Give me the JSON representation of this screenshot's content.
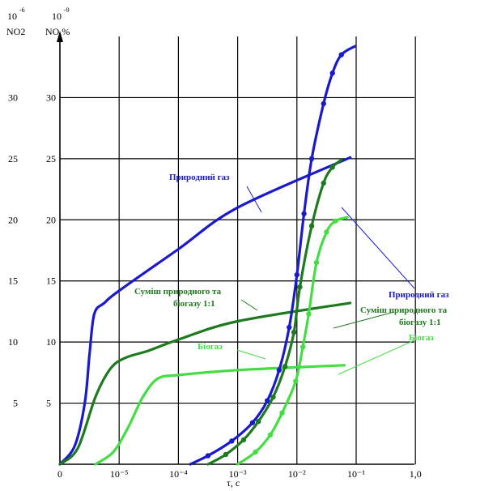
{
  "chart_data": {
    "type": "line",
    "header": {
      "left_power": "10",
      "left_exp": "-6",
      "left_unit": "NO2",
      "right_power": "10",
      "right_exp": "-9",
      "right_unit": "NO,%"
    },
    "xlabel": "τ, с",
    "x_ticks": [
      "0",
      "10⁻⁵",
      "10⁻⁴",
      "10⁻³",
      "10⁻²",
      "10⁻¹",
      "1,0"
    ],
    "y_ticks_left": [
      "5",
      "10",
      "15",
      "20",
      "25",
      "30"
    ],
    "y_ticks_right": [
      "5",
      "10",
      "15",
      "20",
      "25",
      "30"
    ],
    "ylim": [
      0,
      35
    ],
    "grid": true,
    "annotations": {
      "ng_top": "Природний газ",
      "mix_top_1": "Суміш природного та",
      "mix_top_2": "біогазу 1:1",
      "bio_top": "Біогаз",
      "ng_bottom": "Природний газ",
      "mix_bottom_1": "Суміш природного та",
      "mix_bottom_2": "біогазу 1:1",
      "bio_bottom": "Біогаз"
    },
    "series": [
      {
        "color": "#1a1acc",
        "markers": false,
        "points": [
          [
            0,
            0
          ],
          [
            0.25,
            1.5
          ],
          [
            0.42,
            5
          ],
          [
            0.5,
            9
          ],
          [
            0.58,
            12.3
          ],
          [
            0.75,
            13.2
          ],
          [
            1,
            14.2
          ],
          [
            2,
            17.6
          ],
          [
            3,
            21
          ],
          [
            4.9,
            25.1
          ]
        ]
      },
      {
        "color": "#1e7a1e",
        "markers": false,
        "points": [
          [
            0,
            0
          ],
          [
            0.3,
            1.3
          ],
          [
            0.6,
            5.5
          ],
          [
            0.85,
            7.8
          ],
          [
            1.1,
            8.7
          ],
          [
            1.5,
            9.3
          ],
          [
            2,
            10.2
          ],
          [
            3,
            11.7
          ],
          [
            4.9,
            13.2
          ]
        ]
      },
      {
        "color": "#44dd44",
        "markers": false,
        "points": [
          [
            0.6,
            0
          ],
          [
            0.9,
            1
          ],
          [
            1.15,
            3
          ],
          [
            1.4,
            5.5
          ],
          [
            1.65,
            7
          ],
          [
            2,
            7.3
          ],
          [
            3,
            7.7
          ],
          [
            4.8,
            8.1
          ]
        ]
      },
      {
        "color": "#1a1acc",
        "markers": true,
        "points": [
          [
            2.2,
            0
          ],
          [
            2.5,
            0.7
          ],
          [
            2.9,
            1.9
          ],
          [
            3.25,
            3.4
          ],
          [
            3.5,
            5.2
          ],
          [
            3.7,
            7.7
          ],
          [
            3.87,
            11.2
          ],
          [
            4.0,
            15.5
          ],
          [
            4.12,
            20.5
          ],
          [
            4.25,
            25
          ],
          [
            4.45,
            29.5
          ],
          [
            4.6,
            32
          ],
          [
            4.75,
            33.5
          ],
          [
            4.98,
            34.2
          ]
        ]
      },
      {
        "color": "#1e7a1e",
        "markers": true,
        "points": [
          [
            2.5,
            0
          ],
          [
            2.8,
            0.8
          ],
          [
            3.1,
            2
          ],
          [
            3.35,
            3.5
          ],
          [
            3.6,
            5.5
          ],
          [
            3.8,
            8
          ],
          [
            3.95,
            10.8
          ],
          [
            4.05,
            14.5
          ],
          [
            4.25,
            19.5
          ],
          [
            4.45,
            23
          ],
          [
            4.6,
            24.3
          ],
          [
            4.75,
            24.9
          ]
        ]
      },
      {
        "color": "#44dd44",
        "markers": true,
        "points": [
          [
            3.0,
            0
          ],
          [
            3.3,
            1
          ],
          [
            3.55,
            2.4
          ],
          [
            3.75,
            4.2
          ],
          [
            3.98,
            6.8
          ],
          [
            4.1,
            9.6
          ],
          [
            4.2,
            12.3
          ],
          [
            4.33,
            16.5
          ],
          [
            4.5,
            19
          ],
          [
            4.65,
            19.9
          ],
          [
            4.85,
            20.2
          ]
        ]
      }
    ]
  }
}
